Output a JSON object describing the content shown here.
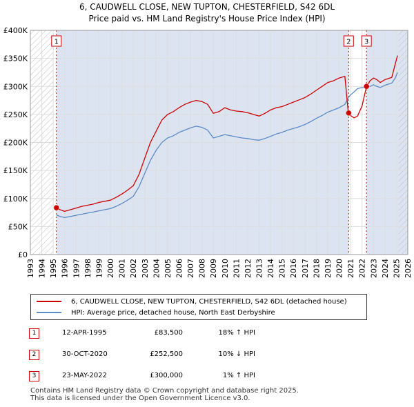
{
  "title": "6, CAUDWELL CLOSE, NEW TUPTON, CHESTERFIELD, S42 6DL",
  "subtitle": "Price paid vs. HM Land Registry's House Price Index (HPI)",
  "colors": {
    "property": "#cc0000",
    "hpi": "#5b8ac5",
    "grid": "#dddddd",
    "shade": "#dce4f2",
    "hatch": "#bbbbbb"
  },
  "chart_data": {
    "type": "line",
    "xlim": [
      1993,
      2026
    ],
    "ylim": [
      0,
      400000
    ],
    "xticks": [
      "1993",
      "1994",
      "1995",
      "1996",
      "1997",
      "1998",
      "1999",
      "2000",
      "2001",
      "2002",
      "2003",
      "2004",
      "2005",
      "2006",
      "2007",
      "2008",
      "2009",
      "2010",
      "2011",
      "2012",
      "2013",
      "2014",
      "2015",
      "2016",
      "2017",
      "2018",
      "2019",
      "2020",
      "2021",
      "2022",
      "2023",
      "2024",
      "2025",
      "2026"
    ],
    "yticks": [
      {
        "value": 0,
        "label": "£0"
      },
      {
        "value": 50000,
        "label": "£50K"
      },
      {
        "value": 100000,
        "label": "£100K"
      },
      {
        "value": 150000,
        "label": "£150K"
      },
      {
        "value": 200000,
        "label": "£200K"
      },
      {
        "value": 250000,
        "label": "£250K"
      },
      {
        "value": 300000,
        "label": "£300K"
      },
      {
        "value": 350000,
        "label": "£350K"
      },
      {
        "value": 400000,
        "label": "£400K"
      }
    ],
    "hatched_ranges": [
      [
        1993,
        1995.0
      ],
      [
        2025.2,
        2026
      ]
    ],
    "shaded_ranges": [
      [
        1995.28,
        2020.83
      ],
      [
        2022.39,
        2026
      ]
    ],
    "series": [
      {
        "name": "6, CAUDWELL CLOSE, NEW TUPTON, CHESTERFIELD, S42 6DL (detached house)",
        "color": "#cc0000",
        "x": [
          1995.28,
          1995.6,
          1996.0,
          1996.5,
          1997.0,
          1997.5,
          1998.0,
          1998.5,
          1999.0,
          1999.5,
          2000.0,
          2000.5,
          2001.0,
          2001.5,
          2002.0,
          2002.5,
          2003.0,
          2003.5,
          2004.0,
          2004.5,
          2005.0,
          2005.5,
          2006.0,
          2006.5,
          2007.0,
          2007.5,
          2008.0,
          2008.5,
          2009.0,
          2009.5,
          2010.0,
          2010.5,
          2011.0,
          2011.5,
          2012.0,
          2012.5,
          2013.0,
          2013.5,
          2014.0,
          2014.5,
          2015.0,
          2015.5,
          2016.0,
          2016.5,
          2017.0,
          2017.5,
          2018.0,
          2018.5,
          2019.0,
          2019.5,
          2020.0,
          2020.5,
          2020.8,
          2021.0,
          2021.3,
          2021.6,
          2022.0,
          2022.39,
          2022.7,
          2023.0,
          2023.3,
          2023.6,
          2024.0,
          2024.3,
          2024.6,
          2024.9,
          2025.1
        ],
        "y": [
          83500,
          80000,
          77000,
          80000,
          83000,
          86000,
          88000,
          90000,
          93000,
          95000,
          97000,
          102000,
          108000,
          115000,
          123000,
          143000,
          172000,
          200000,
          220000,
          240000,
          250000,
          255000,
          262000,
          268000,
          272000,
          275000,
          273000,
          268000,
          252000,
          255000,
          262000,
          258000,
          256000,
          255000,
          253000,
          250000,
          247000,
          252000,
          258000,
          262000,
          264000,
          268000,
          272000,
          276000,
          280000,
          286000,
          293000,
          300000,
          307000,
          310000,
          315000,
          318000,
          252500,
          248000,
          244000,
          247000,
          265000,
          300000,
          310000,
          315000,
          312000,
          307000,
          312000,
          314000,
          316000,
          340000,
          355000
        ]
      },
      {
        "name": "HPI: Average price, detached house, North East Derbyshire",
        "color": "#5b8ac5",
        "x": [
          1995.28,
          1995.6,
          1996.0,
          1996.5,
          1997.0,
          1997.5,
          1998.0,
          1998.5,
          1999.0,
          1999.5,
          2000.0,
          2000.5,
          2001.0,
          2001.5,
          2002.0,
          2002.5,
          2003.0,
          2003.5,
          2004.0,
          2004.5,
          2005.0,
          2005.5,
          2006.0,
          2006.5,
          2007.0,
          2007.5,
          2008.0,
          2008.5,
          2009.0,
          2009.5,
          2010.0,
          2010.5,
          2011.0,
          2011.5,
          2012.0,
          2012.5,
          2013.0,
          2013.5,
          2014.0,
          2014.5,
          2015.0,
          2015.5,
          2016.0,
          2016.5,
          2017.0,
          2017.5,
          2018.0,
          2018.5,
          2019.0,
          2019.5,
          2020.0,
          2020.5,
          2020.8,
          2021.0,
          2021.3,
          2021.6,
          2022.0,
          2022.39,
          2022.7,
          2023.0,
          2023.3,
          2023.6,
          2024.0,
          2024.3,
          2024.6,
          2024.9,
          2025.1
        ],
        "y": [
          70700,
          68000,
          66000,
          68000,
          70000,
          72000,
          74000,
          76000,
          78000,
          80000,
          82000,
          86000,
          91000,
          97000,
          104000,
          121000,
          145000,
          168000,
          186000,
          200000,
          208000,
          212000,
          218000,
          222000,
          226000,
          229000,
          227000,
          222000,
          208000,
          211000,
          214000,
          212000,
          210000,
          208000,
          207000,
          205000,
          204000,
          207000,
          211000,
          215000,
          218000,
          222000,
          225000,
          228000,
          232000,
          237000,
          243000,
          248000,
          254000,
          258000,
          262000,
          268000,
          280000,
          285000,
          290000,
          296000,
          298000,
          297000,
          300000,
          303000,
          300000,
          298000,
          302000,
          304000,
          306000,
          315000,
          325000
        ]
      }
    ],
    "markers": [
      {
        "label": "1",
        "x": 1995.28,
        "y": 83500
      },
      {
        "label": "2",
        "x": 2020.83,
        "y": 252500
      },
      {
        "label": "3",
        "x": 2022.39,
        "y": 300000
      }
    ]
  },
  "legend": {
    "property": "6, CAUDWELL CLOSE, NEW TUPTON, CHESTERFIELD, S42 6DL (detached house)",
    "hpi": "HPI: Average price, detached house, North East Derbyshire"
  },
  "transactions": [
    {
      "num": "1",
      "date": "12-APR-1995",
      "price": "£83,500",
      "hpi": "18% ↑ HPI"
    },
    {
      "num": "2",
      "date": "30-OCT-2020",
      "price": "£252,500",
      "hpi": "10% ↓ HPI"
    },
    {
      "num": "3",
      "date": "23-MAY-2022",
      "price": "£300,000",
      "hpi": "1% ↑ HPI"
    }
  ],
  "footer": {
    "line1": "Contains HM Land Registry data © Crown copyright and database right 2025.",
    "line2": "This data is licensed under the Open Government Licence v3.0."
  }
}
